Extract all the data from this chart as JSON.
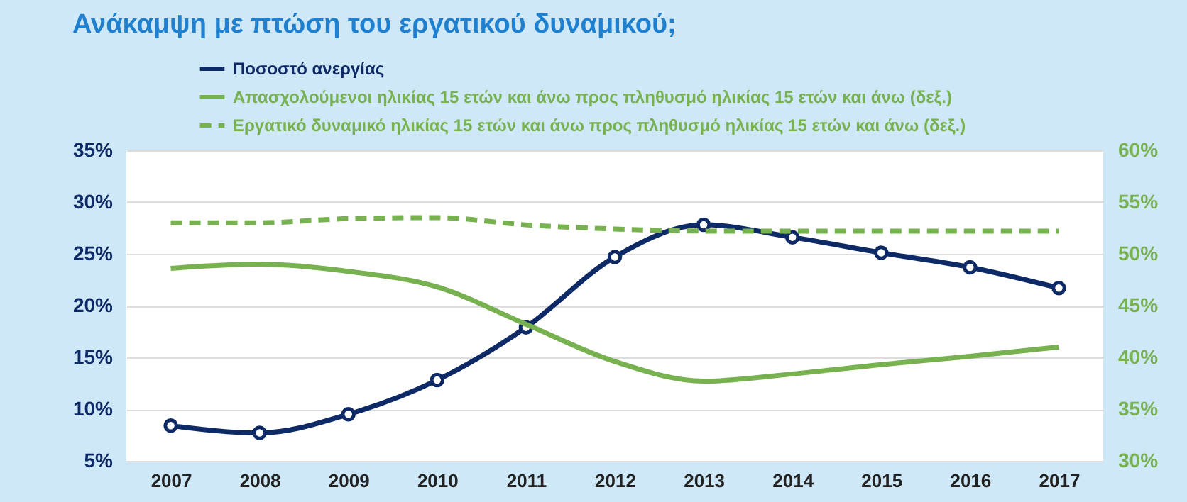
{
  "chart_data": {
    "type": "line",
    "title": "Ανάκαμψη με πτώση του εργατικού δυναμικού;",
    "categories": [
      "2007",
      "2008",
      "2009",
      "2010",
      "2011",
      "2012",
      "2013",
      "2014",
      "2015",
      "2016",
      "2017"
    ],
    "series": [
      {
        "name": "Ποσοστό ανεργίας",
        "color": "#0e2a66",
        "marker": "circle",
        "line_style": "solid",
        "values": [
          8.4,
          7.7,
          9.5,
          12.8,
          17.9,
          24.7,
          27.8,
          26.6,
          25.1,
          23.7,
          21.7
        ]
      },
      {
        "name": "Απασχολούμενοι ηλικίας 15 ετών και άνω προς πληθυσμό ηλικίας 15 ετών και άνω (δεξ.)",
        "color": "#77b150",
        "axis": "y2",
        "marker": "none",
        "line_style": "solid",
        "values": [
          48.6,
          49.0,
          48.3,
          46.8,
          43.2,
          39.6,
          37.7,
          38.4,
          39.3,
          40.1,
          41.0
        ]
      },
      {
        "name": "Εργατικό δυναμικό ηλικίας 15 ετών και άνω προς πληθυσμό ηλικίας 15 ετών και άνω (δεξ.)",
        "color": "#77b150",
        "axis": "y2",
        "marker": "none",
        "line_style": "dashed",
        "values": [
          53.0,
          53.0,
          53.4,
          53.5,
          52.8,
          52.4,
          52.2,
          52.2,
          52.2,
          52.2,
          52.2
        ]
      }
    ],
    "ylim": [
      5,
      35
    ],
    "yticks": [
      {
        "value": 5,
        "label": "5%"
      },
      {
        "value": 10,
        "label": "10%"
      },
      {
        "value": 15,
        "label": "15%"
      },
      {
        "value": 20,
        "label": "20%"
      },
      {
        "value": 25,
        "label": "25%"
      },
      {
        "value": 30,
        "label": "30%"
      },
      {
        "value": 35,
        "label": "35%"
      }
    ],
    "y2lim": [
      30,
      60
    ],
    "y2ticks": [
      {
        "value": 30,
        "label": "30%"
      },
      {
        "value": 35,
        "label": "35%"
      },
      {
        "value": 40,
        "label": "40%"
      },
      {
        "value": 45,
        "label": "45%"
      },
      {
        "value": 50,
        "label": "50%"
      },
      {
        "value": 55,
        "label": "55%"
      },
      {
        "value": 60,
        "label": "60%"
      }
    ],
    "grid": "y",
    "legend": "top left"
  }
}
